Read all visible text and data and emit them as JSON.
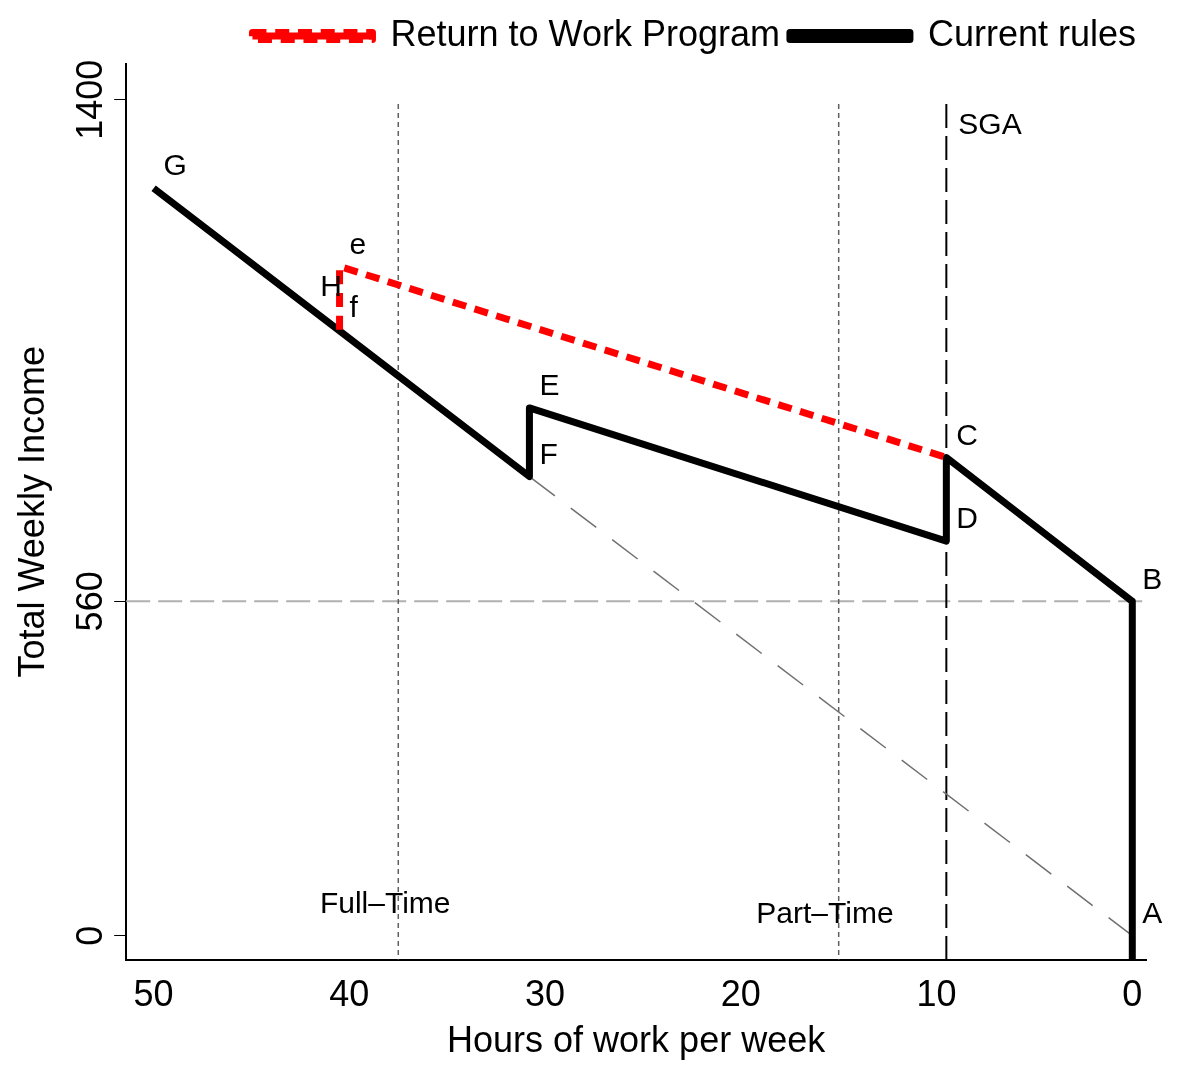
{
  "chart_data": {
    "type": "line",
    "xlabel": "Hours of work per week",
    "ylabel": "Total Weekly Income",
    "xlim": [
      51.4,
      -0.7
    ],
    "xticks": [
      50,
      40,
      30,
      20,
      10,
      0
    ],
    "ylim": [
      -40,
      1460
    ],
    "yticks": [
      0,
      560,
      1400
    ],
    "grid": false,
    "legend": "top",
    "marker": "none",
    "series": [
      {
        "name": "Return to Work Program",
        "color": "#ff0000",
        "line_style": "dashed",
        "x": [
          40.5,
          40.5,
          9.5
        ],
        "values": [
          1015,
          1121,
          801
        ]
      },
      {
        "name": "Current rules",
        "color": "#000000",
        "line_style": "solid",
        "x": [
          50,
          30.8,
          30.8,
          9.5,
          9.5,
          0,
          0
        ],
        "values": [
          1252,
          769,
          884,
          661,
          801,
          560,
          -40
        ]
      },
      {
        "color": "#707070",
        "line_style": "dashed",
        "x": [
          30.8,
          0
        ],
        "values": [
          769,
          0
        ]
      }
    ],
    "ref_lines": [
      {
        "axis": "y",
        "value": 560,
        "color": "#b0b0b0",
        "line_style": "dashed"
      },
      {
        "axis": "x",
        "value": 37.5,
        "label": "Full–Time",
        "color": "#606060",
        "line_style": "dotted"
      },
      {
        "axis": "x",
        "value": 15,
        "label": "Part–Time",
        "color": "#606060",
        "line_style": "dotted"
      },
      {
        "axis": "x",
        "value": 9.5,
        "label": "SGA",
        "color": "#000000",
        "line_style": "dashed"
      }
    ],
    "annotations": [
      {
        "text": "G",
        "x": 50,
        "y": 1252
      },
      {
        "text": "H",
        "x": 42,
        "y": 1050
      },
      {
        "text": "e",
        "x": 40.5,
        "y": 1121
      },
      {
        "text": "f",
        "x": 40.5,
        "y": 1015
      },
      {
        "text": "E",
        "x": 30.8,
        "y": 884
      },
      {
        "text": "F",
        "x": 30.8,
        "y": 769
      },
      {
        "text": "C",
        "x": 9.5,
        "y": 801
      },
      {
        "text": "D",
        "x": 9.5,
        "y": 661
      },
      {
        "text": "B",
        "x": 0,
        "y": 560
      },
      {
        "text": "A",
        "x": 0,
        "y": 0
      }
    ]
  }
}
